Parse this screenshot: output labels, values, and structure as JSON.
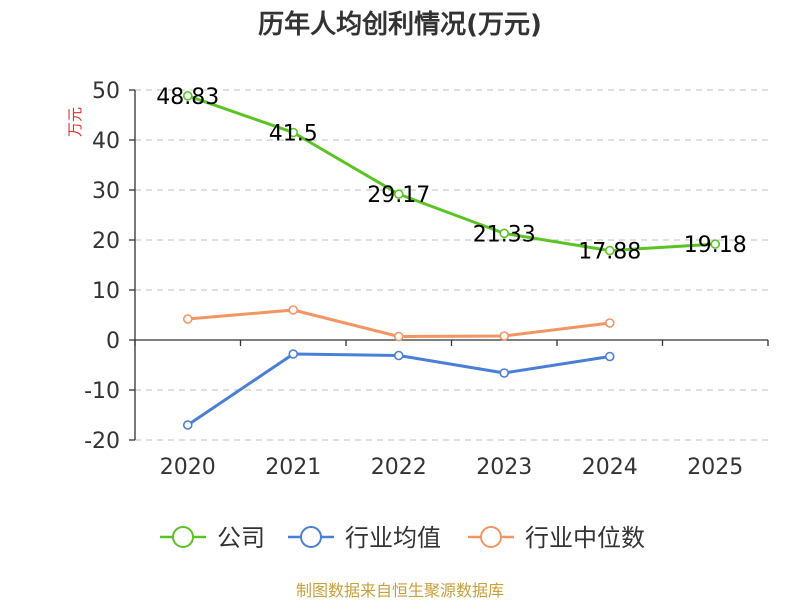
{
  "chart_data": {
    "type": "line",
    "title": "历年人均创利情况(万元)",
    "ylabel": "万元",
    "ylim": [
      -20,
      50
    ],
    "yticks": [
      50,
      40,
      30,
      20,
      10,
      0,
      -10,
      -20
    ],
    "categories": [
      "2020",
      "2021",
      "2022",
      "2023",
      "2024",
      "2025"
    ],
    "grid": true,
    "legend_position": "bottom",
    "series": [
      {
        "name": "公司",
        "color": "#5bc425",
        "values": [
          48.83,
          41.5,
          29.17,
          21.33,
          17.88,
          19.18
        ],
        "labels": [
          "48.83",
          "41.5",
          "29.17",
          "21.33",
          "17.88",
          "19.18"
        ]
      },
      {
        "name": "行业均值",
        "color": "#4a7fd6",
        "values": [
          -17.0,
          -2.8,
          -3.1,
          -6.6,
          -3.3,
          null
        ]
      },
      {
        "name": "行业中位数",
        "color": "#f39463",
        "values": [
          4.2,
          6.0,
          0.7,
          0.8,
          3.4,
          null
        ]
      }
    ]
  },
  "source": "制图数据来自恒生聚源数据库"
}
